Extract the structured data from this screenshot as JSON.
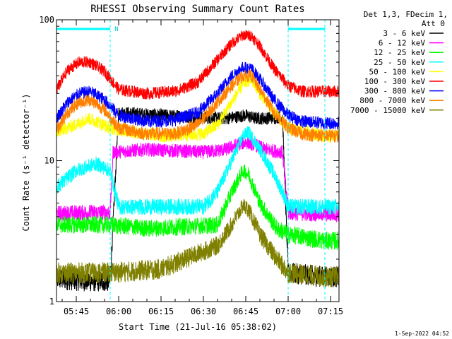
{
  "chart_data": {
    "type": "line",
    "title": "RHESSI Observing Summary Count Rates",
    "xlabel": "Start Time (21-Jul-16 05:38:02)",
    "ylabel": "Count Rate (s⁻¹ detector⁻¹)",
    "ylog": true,
    "ylim": [
      1,
      100
    ],
    "xlim_minutes": [
      38,
      138
    ],
    "x_ticks": [
      {
        "label": "05:45",
        "minute": 45
      },
      {
        "label": "06:00",
        "minute": 60
      },
      {
        "label": "06:15",
        "minute": 75
      },
      {
        "label": "06:30",
        "minute": 90
      },
      {
        "label": "06:45",
        "minute": 105
      },
      {
        "label": "07:00",
        "minute": 120
      },
      {
        "label": "07:15",
        "minute": 135
      }
    ],
    "y_ticks": [
      {
        "label": "100",
        "value": 100
      },
      {
        "label": "10",
        "value": 10
      },
      {
        "label": "1",
        "value": 1
      }
    ],
    "legend_header": [
      "Det 1,3, FDecim 1,",
      "Att 0"
    ],
    "legend_placement": "right",
    "data_gaps": [
      {
        "from_minute": 38,
        "to_minute": 57,
        "label": ""
      },
      {
        "from_minute": 57,
        "to_minute": 57.8,
        "label": "N"
      },
      {
        "from_minute": 120,
        "to_minute": 133,
        "label": ""
      }
    ],
    "series": [
      {
        "name": "3 - 6 keV",
        "color": "#000000",
        "x": [
          38,
          50,
          57,
          60,
          75,
          95,
          98,
          102,
          105,
          108,
          112,
          118,
          120,
          133
        ],
        "y": [
          1.45,
          1.4,
          1.4,
          22,
          21,
          20,
          20,
          20.5,
          21,
          20,
          20,
          20.5,
          1.6,
          1.5
        ]
      },
      {
        "name": "6 - 12 keV",
        "color": "#ff00ff",
        "x": [
          38,
          57,
          58,
          70,
          90,
          98,
          102,
          105,
          108,
          112,
          118,
          120,
          133
        ],
        "y": [
          4.2,
          4.3,
          11.5,
          12,
          11.5,
          12,
          13,
          13.5,
          13,
          12,
          11.5,
          4.3,
          4.2
        ]
      },
      {
        "name": "12 - 25 keV",
        "color": "#00ff00",
        "x": [
          38,
          57,
          70,
          95,
          100,
          104,
          106,
          110,
          116,
          120,
          133
        ],
        "y": [
          3.5,
          3.5,
          3.3,
          3.5,
          6,
          8.5,
          8,
          5,
          3.3,
          3.0,
          2.7
        ]
      },
      {
        "name": "25 - 50 keV",
        "color": "#00ffff",
        "x": [
          38,
          45,
          52,
          57,
          60,
          90,
          95,
          100,
          104,
          106,
          110,
          115,
          118,
          120,
          133
        ],
        "y": [
          6.5,
          8.5,
          9.5,
          8.5,
          4.7,
          4.7,
          6,
          10,
          15,
          16,
          12,
          8,
          6,
          4.7,
          4.7
        ]
      },
      {
        "name": "50 - 100 keV",
        "color": "#ffff00",
        "x": [
          38,
          45,
          49,
          52,
          57,
          65,
          75,
          90,
          95,
          100,
          104,
          107,
          110,
          115,
          120,
          133
        ],
        "y": [
          16,
          18,
          20,
          19,
          17,
          16,
          15,
          15.5,
          18,
          26,
          35,
          38,
          30,
          22,
          17,
          15
        ]
      },
      {
        "name": "100 - 300 keV",
        "color": "#ff0000",
        "x": [
          38,
          42,
          46,
          50,
          55,
          60,
          70,
          80,
          88,
          95,
          100,
          104,
          107,
          110,
          115,
          120,
          125,
          133
        ],
        "y": [
          32,
          44,
          50,
          50,
          43,
          32,
          30,
          31,
          36,
          52,
          68,
          78,
          77,
          65,
          45,
          34,
          31,
          31
        ]
      },
      {
        "name": "300 - 800 keV",
        "color": "#0000ff",
        "x": [
          38,
          42,
          46,
          50,
          55,
          60,
          70,
          80,
          88,
          95,
          100,
          104,
          107,
          110,
          115,
          120,
          125,
          133
        ],
        "y": [
          20,
          26,
          30,
          31,
          27,
          21,
          19,
          19.5,
          22,
          30,
          40,
          46,
          45,
          38,
          27,
          21,
          19,
          18.5
        ]
      },
      {
        "name": "800 - 7000 keV",
        "color": "#ff8000",
        "x": [
          38,
          42,
          46,
          50,
          55,
          60,
          70,
          80,
          88,
          95,
          100,
          104,
          107,
          110,
          115,
          120,
          125,
          133
        ],
        "y": [
          16.5,
          22,
          26,
          27,
          23,
          17,
          15.5,
          15.5,
          18,
          26,
          34,
          40,
          40,
          32,
          22,
          17,
          15.5,
          15
        ]
      },
      {
        "name": "7000 - 15000 keV",
        "color": "#808000",
        "x": [
          38,
          57,
          75,
          95,
          100,
          104,
          106,
          110,
          116,
          120,
          133
        ],
        "y": [
          1.6,
          1.6,
          1.7,
          2.5,
          3.5,
          4.8,
          4.5,
          3,
          2,
          1.6,
          1.5
        ]
      }
    ]
  },
  "footer": {
    "date_stamp": "1-Sep-2022 04:52"
  }
}
